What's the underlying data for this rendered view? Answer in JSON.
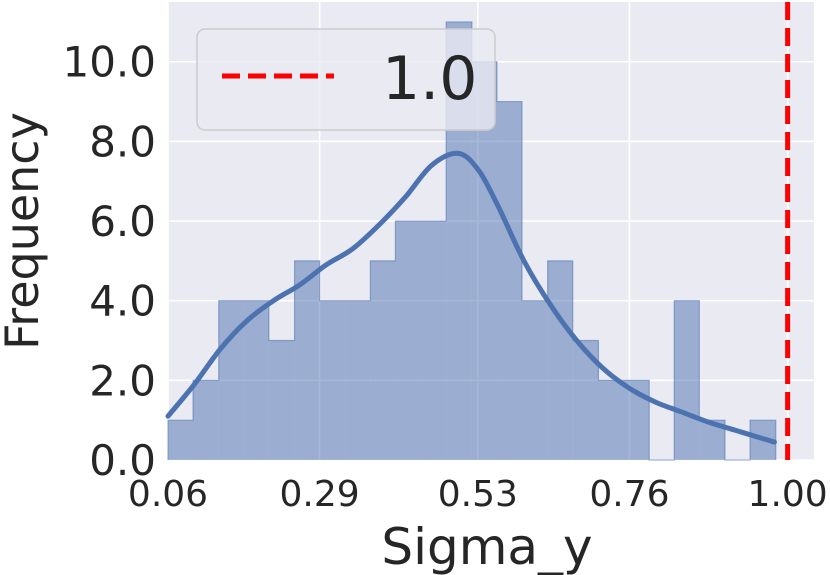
{
  "chart_data": {
    "type": "histogram",
    "xlabel": "Sigma_y",
    "ylabel": "Frequency",
    "xlim": [
      0.06,
      1.04
    ],
    "ylim": [
      0,
      11.5
    ],
    "x_ticks": [
      "0.06",
      "0.29",
      "0.53",
      "0.76",
      "1.00"
    ],
    "y_ticks": [
      "0.0",
      "2.0",
      "4.0",
      "6.0",
      "8.0",
      "10.0"
    ],
    "grid": true,
    "bins": [
      {
        "start": 0.06,
        "end": 0.098,
        "count": 1
      },
      {
        "start": 0.098,
        "end": 0.137,
        "count": 2
      },
      {
        "start": 0.137,
        "end": 0.175,
        "count": 4
      },
      {
        "start": 0.175,
        "end": 0.213,
        "count": 4
      },
      {
        "start": 0.213,
        "end": 0.252,
        "count": 3
      },
      {
        "start": 0.252,
        "end": 0.29,
        "count": 5
      },
      {
        "start": 0.29,
        "end": 0.329,
        "count": 4
      },
      {
        "start": 0.329,
        "end": 0.367,
        "count": 4
      },
      {
        "start": 0.367,
        "end": 0.405,
        "count": 5
      },
      {
        "start": 0.405,
        "end": 0.444,
        "count": 6
      },
      {
        "start": 0.444,
        "end": 0.482,
        "count": 6
      },
      {
        "start": 0.482,
        "end": 0.521,
        "count": 11
      },
      {
        "start": 0.521,
        "end": 0.559,
        "count": 10
      },
      {
        "start": 0.559,
        "end": 0.597,
        "count": 9
      },
      {
        "start": 0.597,
        "end": 0.636,
        "count": 4
      },
      {
        "start": 0.636,
        "end": 0.674,
        "count": 5
      },
      {
        "start": 0.674,
        "end": 0.713,
        "count": 3
      },
      {
        "start": 0.713,
        "end": 0.751,
        "count": 2
      },
      {
        "start": 0.751,
        "end": 0.79,
        "count": 2
      },
      {
        "start": 0.79,
        "end": 0.828,
        "count": 0
      },
      {
        "start": 0.828,
        "end": 0.866,
        "count": 4
      },
      {
        "start": 0.866,
        "end": 0.905,
        "count": 1
      },
      {
        "start": 0.905,
        "end": 0.943,
        "count": 0
      },
      {
        "start": 0.943,
        "end": 0.982,
        "count": 1
      }
    ],
    "kde": {
      "x": [
        0.06,
        0.1,
        0.14,
        0.18,
        0.22,
        0.26,
        0.3,
        0.34,
        0.38,
        0.42,
        0.46,
        0.5,
        0.53,
        0.56,
        0.6,
        0.64,
        0.68,
        0.72,
        0.76,
        0.8,
        0.84,
        0.88,
        0.92,
        0.96,
        0.98
      ],
      "y": [
        1.1,
        1.9,
        2.8,
        3.5,
        4.0,
        4.4,
        4.9,
        5.3,
        5.9,
        6.6,
        7.4,
        7.7,
        7.3,
        6.4,
        5.0,
        3.9,
        3.0,
        2.3,
        1.8,
        1.45,
        1.2,
        0.95,
        0.75,
        0.55,
        0.45
      ]
    },
    "reference_line": {
      "x": 1.0,
      "label": "1.0",
      "color": "#ff0000",
      "style": "dashed"
    },
    "legend": {
      "position": "top-left",
      "entries": [
        "1.0"
      ]
    },
    "colors": {
      "background": "#eaeaf2",
      "grid": "#ffffff",
      "bar_fill": "#4c72b0",
      "kde_line": "#4c72b0",
      "reference_line": "#ff0000"
    }
  }
}
